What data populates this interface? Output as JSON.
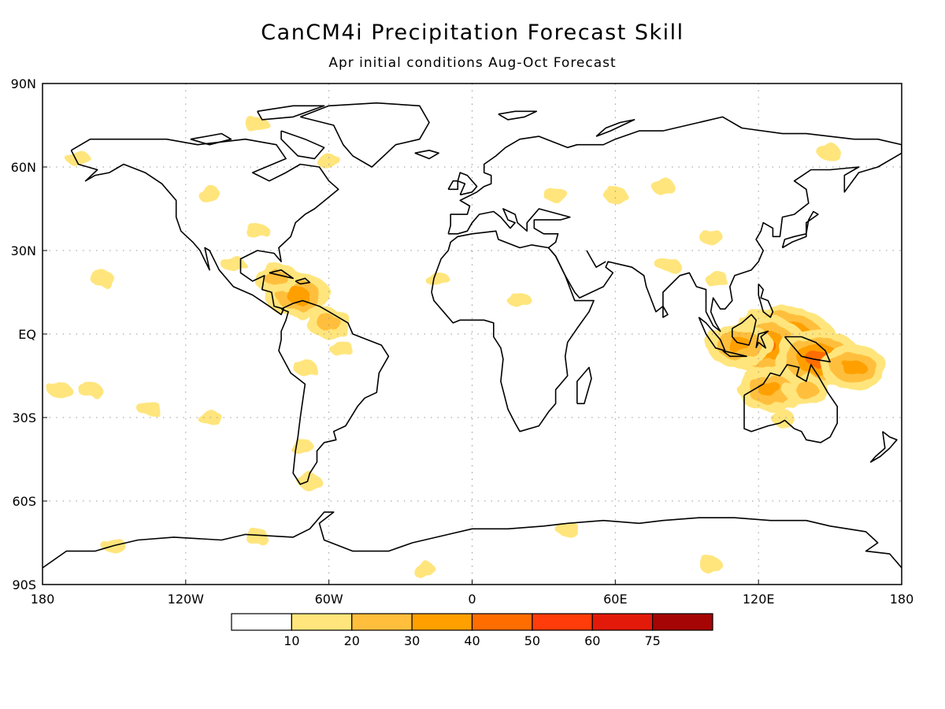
{
  "title": "CanCM4i Precipitation Forecast Skill",
  "subtitle": "Apr initial conditions  Aug-Oct Forecast",
  "map": {
    "lon_range": [
      -180,
      180
    ],
    "lat_range": [
      -90,
      90
    ],
    "grid": "dotted",
    "lat_ticks": [
      {
        "value": 90,
        "label": "90N"
      },
      {
        "value": 60,
        "label": "60N"
      },
      {
        "value": 30,
        "label": "30N"
      },
      {
        "value": 0,
        "label": "EQ"
      },
      {
        "value": -30,
        "label": "30S"
      },
      {
        "value": -60,
        "label": "60S"
      },
      {
        "value": -90,
        "label": "90S"
      }
    ],
    "lon_ticks": [
      {
        "value": -180,
        "label": "180"
      },
      {
        "value": -120,
        "label": "120W"
      },
      {
        "value": -60,
        "label": "60W"
      },
      {
        "value": 0,
        "label": "0"
      },
      {
        "value": 60,
        "label": "60E"
      },
      {
        "value": 120,
        "label": "120E"
      },
      {
        "value": 180,
        "label": "180"
      }
    ],
    "skill_regions": [
      {
        "lon": 130,
        "lat": -3,
        "level": 5
      },
      {
        "lon": 122,
        "lat": -4,
        "level": 4
      },
      {
        "lon": 145,
        "lat": -9,
        "level": 4
      },
      {
        "lon": 112,
        "lat": -4,
        "level": 3
      },
      {
        "lon": 160,
        "lat": -12,
        "level": 3
      },
      {
        "lon": 125,
        "lat": -20,
        "level": 3
      },
      {
        "lon": 140,
        "lat": -20,
        "level": 2
      },
      {
        "lon": 130,
        "lat": -30,
        "level": 1
      },
      {
        "lon": 102,
        "lat": 20,
        "level": 1
      },
      {
        "lon": 82,
        "lat": 25,
        "level": 1
      },
      {
        "lon": -73,
        "lat": 14,
        "level": 3
      },
      {
        "lon": -82,
        "lat": 20,
        "level": 2
      },
      {
        "lon": -60,
        "lat": 4,
        "level": 2
      },
      {
        "lon": -55,
        "lat": -5,
        "level": 1
      },
      {
        "lon": -70,
        "lat": -12,
        "level": 1
      },
      {
        "lon": -72,
        "lat": -40,
        "level": 1
      },
      {
        "lon": -68,
        "lat": -53,
        "level": 1
      },
      {
        "lon": -100,
        "lat": 25,
        "level": 1
      },
      {
        "lon": -90,
        "lat": 37,
        "level": 1
      },
      {
        "lon": -110,
        "lat": 50,
        "level": 1
      },
      {
        "lon": -90,
        "lat": 75,
        "level": 1
      },
      {
        "lon": -60,
        "lat": 62,
        "level": 1
      },
      {
        "lon": -165,
        "lat": 63,
        "level": 1
      },
      {
        "lon": -155,
        "lat": 20,
        "level": 1
      },
      {
        "lon": -173,
        "lat": -20,
        "level": 1
      },
      {
        "lon": -160,
        "lat": -20,
        "level": 1
      },
      {
        "lon": -135,
        "lat": -27,
        "level": 1
      },
      {
        "lon": -110,
        "lat": -30,
        "level": 1
      },
      {
        "lon": -15,
        "lat": 20,
        "level": 1
      },
      {
        "lon": 20,
        "lat": 12,
        "level": 1
      },
      {
        "lon": 35,
        "lat": 50,
        "level": 1
      },
      {
        "lon": 60,
        "lat": 50,
        "level": 1
      },
      {
        "lon": 80,
        "lat": 53,
        "level": 1
      },
      {
        "lon": 100,
        "lat": 35,
        "level": 1
      },
      {
        "lon": 150,
        "lat": 65,
        "level": 1
      },
      {
        "lon": 40,
        "lat": -70,
        "level": 1
      },
      {
        "lon": 100,
        "lat": -83,
        "level": 1
      },
      {
        "lon": -150,
        "lat": -76,
        "level": 1
      },
      {
        "lon": -90,
        "lat": -73,
        "level": 1
      },
      {
        "lon": -20,
        "lat": -85,
        "level": 1
      }
    ]
  },
  "colorbar": {
    "labels": [
      "10",
      "20",
      "30",
      "40",
      "50",
      "60",
      "75"
    ],
    "colors": [
      "#ffffff",
      "#ffe57c",
      "#ffbf3c",
      "#ffa000",
      "#ff6d00",
      "#ff3c0a",
      "#e31a0a",
      "#a50505"
    ]
  }
}
